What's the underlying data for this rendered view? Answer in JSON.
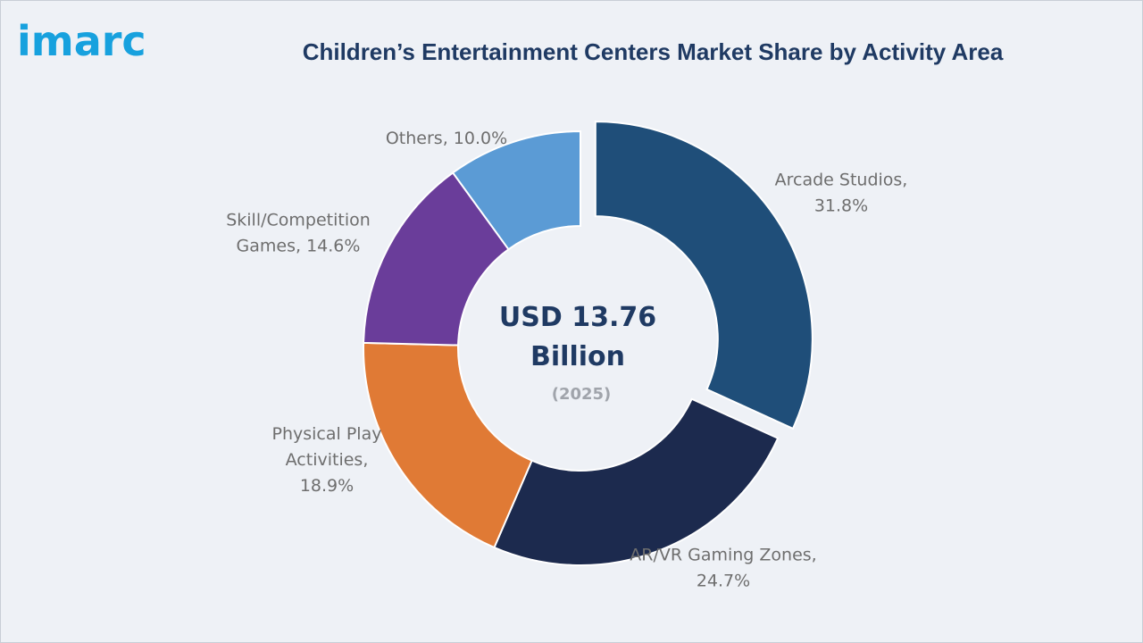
{
  "brand": {
    "logo_text": "imarc"
  },
  "chart_data": {
    "type": "pie",
    "title": "Children’s Entertainment Centers Market Share by Activity Area",
    "center": {
      "value_line1": "USD 13.76",
      "value_line2": "Billion",
      "year": "(2025)"
    },
    "slices": [
      {
        "category": "Arcade Studios",
        "value": 31.8,
        "label_lines": [
          "Arcade Studios,",
          "31.8%"
        ],
        "color": "#1f4e79"
      },
      {
        "category": "AR/VR Gaming Zones",
        "value": 24.7,
        "label_lines": [
          "AR/VR Gaming Zones,",
          "24.7%"
        ],
        "color": "#1c2a4e"
      },
      {
        "category": "Physical Play Activities",
        "value": 18.9,
        "label_lines": [
          "Physical Play",
          "Activities,",
          "18.9%"
        ],
        "color": "#e07a35"
      },
      {
        "category": "Skill/Competition Games",
        "value": 14.6,
        "label_lines": [
          "Skill/Competition",
          "Games, 14.6%"
        ],
        "color": "#6a3d9a"
      },
      {
        "category": "Others",
        "value": 10.0,
        "label_lines": [
          "Others, 10.0%"
        ],
        "color": "#5b9bd5"
      }
    ]
  }
}
